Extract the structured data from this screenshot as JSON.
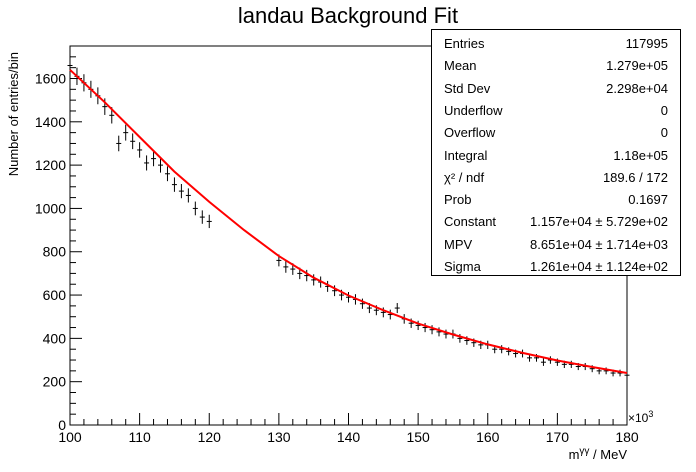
{
  "chart_data": {
    "type": "scatter",
    "title": "landau Background Fit",
    "xlabel": "m^{γγ} / MeV",
    "ylabel": "Number of entries/bin",
    "x_multiplier": "×10^3",
    "xlim": [
      100000,
      180000
    ],
    "ylim": [
      0,
      1750
    ],
    "x_ticks": [
      100,
      110,
      120,
      130,
      140,
      150,
      160,
      170,
      180
    ],
    "y_ticks": [
      0,
      200,
      400,
      600,
      800,
      1000,
      1200,
      1400,
      1600
    ],
    "grid": false,
    "fit": {
      "function": "landau",
      "color": "#ff0000",
      "points": [
        {
          "x": 100000,
          "y": 1640
        },
        {
          "x": 105000,
          "y": 1490
        },
        {
          "x": 110000,
          "y": 1330
        },
        {
          "x": 115000,
          "y": 1170
        },
        {
          "x": 120000,
          "y": 1030
        },
        {
          "x": 125000,
          "y": 900
        },
        {
          "x": 130000,
          "y": 780
        },
        {
          "x": 135000,
          "y": 680
        },
        {
          "x": 140000,
          "y": 598
        },
        {
          "x": 145000,
          "y": 530
        },
        {
          "x": 150000,
          "y": 468
        },
        {
          "x": 155000,
          "y": 418
        },
        {
          "x": 160000,
          "y": 372
        },
        {
          "x": 165000,
          "y": 333
        },
        {
          "x": 170000,
          "y": 298
        },
        {
          "x": 175000,
          "y": 268
        },
        {
          "x": 180000,
          "y": 240
        }
      ]
    },
    "series": [
      {
        "color": "#000000",
        "points": [
          {
            "x": 100000,
            "y": 1660
          },
          {
            "x": 101000,
            "y": 1610
          },
          {
            "x": 102000,
            "y": 1580
          },
          {
            "x": 103000,
            "y": 1550
          },
          {
            "x": 104000,
            "y": 1520
          },
          {
            "x": 105000,
            "y": 1470
          },
          {
            "x": 106000,
            "y": 1430
          },
          {
            "x": 107000,
            "y": 1300
          },
          {
            "x": 108000,
            "y": 1350
          },
          {
            "x": 109000,
            "y": 1310
          },
          {
            "x": 110000,
            "y": 1270
          },
          {
            "x": 111000,
            "y": 1210
          },
          {
            "x": 112000,
            "y": 1230
          },
          {
            "x": 113000,
            "y": 1200
          },
          {
            "x": 114000,
            "y": 1160
          },
          {
            "x": 115000,
            "y": 1110
          },
          {
            "x": 116000,
            "y": 1080
          },
          {
            "x": 117000,
            "y": 1060
          },
          {
            "x": 118000,
            "y": 1000
          },
          {
            "x": 119000,
            "y": 960
          },
          {
            "x": 120000,
            "y": 940
          },
          {
            "x": 130000,
            "y": 760
          },
          {
            "x": 131000,
            "y": 730
          },
          {
            "x": 132000,
            "y": 720
          },
          {
            "x": 133000,
            "y": 700
          },
          {
            "x": 134000,
            "y": 690
          },
          {
            "x": 135000,
            "y": 670
          },
          {
            "x": 136000,
            "y": 660
          },
          {
            "x": 137000,
            "y": 640
          },
          {
            "x": 138000,
            "y": 620
          },
          {
            "x": 139000,
            "y": 600
          },
          {
            "x": 140000,
            "y": 590
          },
          {
            "x": 141000,
            "y": 580
          },
          {
            "x": 142000,
            "y": 560
          },
          {
            "x": 143000,
            "y": 540
          },
          {
            "x": 144000,
            "y": 530
          },
          {
            "x": 145000,
            "y": 520
          },
          {
            "x": 146000,
            "y": 510
          },
          {
            "x": 147000,
            "y": 540
          },
          {
            "x": 148000,
            "y": 490
          },
          {
            "x": 149000,
            "y": 470
          },
          {
            "x": 150000,
            "y": 460
          },
          {
            "x": 151000,
            "y": 450
          },
          {
            "x": 152000,
            "y": 440
          },
          {
            "x": 153000,
            "y": 430
          },
          {
            "x": 154000,
            "y": 420
          },
          {
            "x": 155000,
            "y": 420
          },
          {
            "x": 156000,
            "y": 400
          },
          {
            "x": 157000,
            "y": 390
          },
          {
            "x": 158000,
            "y": 380
          },
          {
            "x": 159000,
            "y": 370
          },
          {
            "x": 160000,
            "y": 370
          },
          {
            "x": 161000,
            "y": 350
          },
          {
            "x": 162000,
            "y": 350
          },
          {
            "x": 163000,
            "y": 340
          },
          {
            "x": 164000,
            "y": 330
          },
          {
            "x": 165000,
            "y": 330
          },
          {
            "x": 166000,
            "y": 310
          },
          {
            "x": 167000,
            "y": 310
          },
          {
            "x": 168000,
            "y": 290
          },
          {
            "x": 169000,
            "y": 300
          },
          {
            "x": 170000,
            "y": 290
          },
          {
            "x": 171000,
            "y": 280
          },
          {
            "x": 172000,
            "y": 280
          },
          {
            "x": 173000,
            "y": 270
          },
          {
            "x": 174000,
            "y": 270
          },
          {
            "x": 175000,
            "y": 260
          },
          {
            "x": 176000,
            "y": 250
          },
          {
            "x": 177000,
            "y": 250
          },
          {
            "x": 178000,
            "y": 240
          },
          {
            "x": 179000,
            "y": 240
          },
          {
            "x": 180000,
            "y": 230
          }
        ]
      }
    ],
    "stats": [
      {
        "label": "Entries",
        "value": "117995"
      },
      {
        "label": "Mean",
        "value": "1.279e+05"
      },
      {
        "label": "Std Dev",
        "value": "2.298e+04"
      },
      {
        "label": "Underflow",
        "value": "0"
      },
      {
        "label": "Overflow",
        "value": "0"
      },
      {
        "label": "Integral",
        "value": "1.18e+05"
      },
      {
        "label": "χ² / ndf",
        "value": "189.6 / 172"
      },
      {
        "label": "Prob",
        "value": "0.1697"
      },
      {
        "label": "Constant",
        "value": "1.157e+04 ± 5.729e+02"
      },
      {
        "label": "MPV",
        "value": "8.651e+04 ± 1.714e+03"
      },
      {
        "label": "Sigma",
        "value": "1.261e+04 ± 1.124e+02"
      }
    ],
    "stats_position": "top-right"
  }
}
